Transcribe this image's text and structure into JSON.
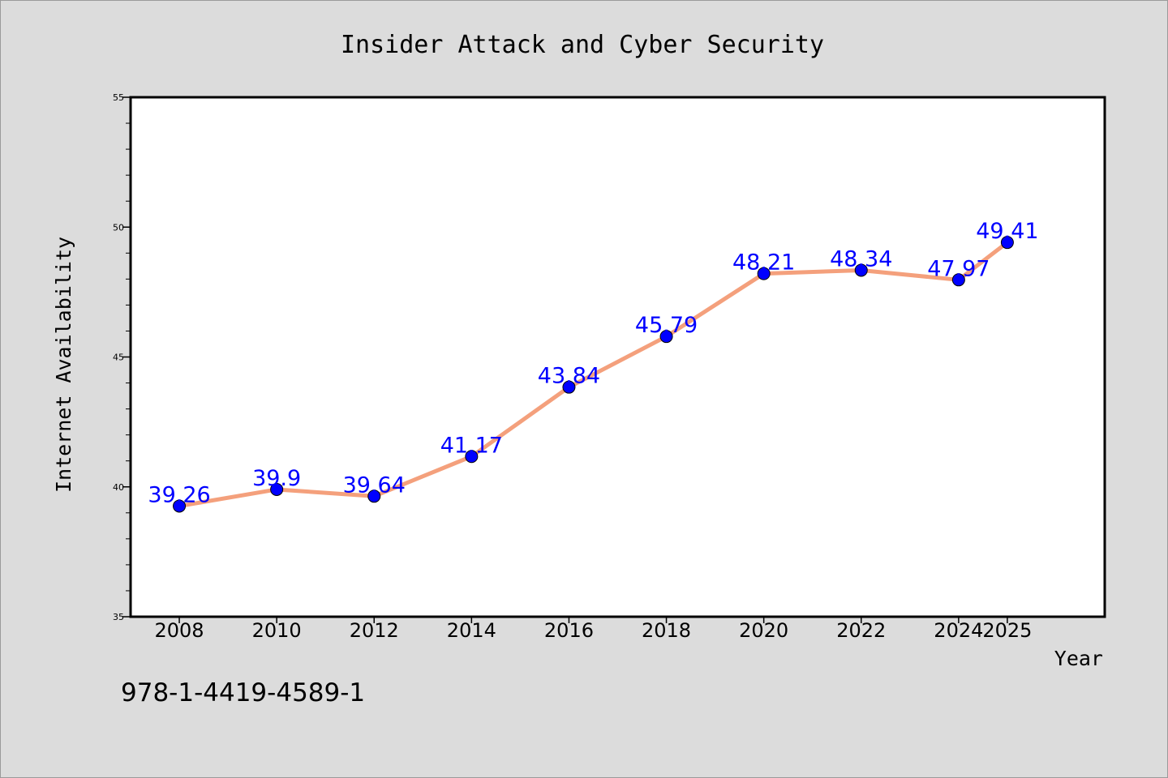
{
  "chart_data": {
    "type": "line",
    "title": "Insider Attack and Cyber Security",
    "xlabel": "Year",
    "ylabel": "Internet Availability",
    "x": [
      2008,
      2010,
      2012,
      2014,
      2016,
      2018,
      2020,
      2022,
      2024,
      2025
    ],
    "x_tick_labels": [
      "2008",
      "2010",
      "2012",
      "2014",
      "2016",
      "2018",
      "2020",
      "2022",
      "2024",
      "2025"
    ],
    "series": [
      {
        "values": [
          39.26,
          39.9,
          39.64,
          41.17,
          43.84,
          45.79,
          48.21,
          48.34,
          47.97,
          49.41
        ],
        "labels": [
          "39.26",
          "39.9",
          "39.64",
          "41.17",
          "43.84",
          "45.79",
          "48.21",
          "48.34",
          "47.97",
          "49.41"
        ],
        "line_color": "#f4a07c",
        "marker_color": "#0000ff"
      }
    ],
    "ylim": [
      35,
      55
    ],
    "y_ticks": [
      "35",
      "40",
      "45",
      "50",
      "55"
    ],
    "grid": false,
    "legend": "none",
    "label_color": "#0000ff"
  },
  "footnote": "978-1-4419-4589-1"
}
